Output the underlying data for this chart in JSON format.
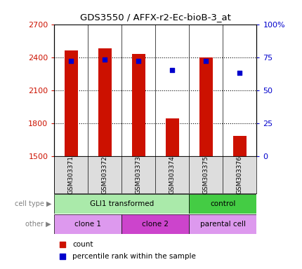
{
  "title": "GDS3550 / AFFX-r2-Ec-bioB-3_at",
  "samples": [
    "GSM303371",
    "GSM303372",
    "GSM303373",
    "GSM303374",
    "GSM303375",
    "GSM303376"
  ],
  "counts": [
    2460,
    2480,
    2430,
    1840,
    2400,
    1680
  ],
  "percentile_ranks": [
    72,
    73,
    72,
    65,
    72,
    63
  ],
  "ylim_left": [
    1500,
    2700
  ],
  "ylim_right": [
    0,
    100
  ],
  "yticks_left": [
    1500,
    1800,
    2100,
    2400,
    2700
  ],
  "yticks_right": [
    0,
    25,
    50,
    75,
    100
  ],
  "bar_color": "#cc1100",
  "dot_color": "#0000cc",
  "bar_bottom": 1500,
  "cell_type_labels": [
    {
      "text": "GLI1 transformed",
      "span": [
        0,
        4
      ],
      "color": "#aaeaaa"
    },
    {
      "text": "control",
      "span": [
        4,
        6
      ],
      "color": "#44cc44"
    }
  ],
  "other_labels": [
    {
      "text": "clone 1",
      "span": [
        0,
        2
      ],
      "color": "#dd99ee"
    },
    {
      "text": "clone 2",
      "span": [
        2,
        4
      ],
      "color": "#cc44cc"
    },
    {
      "text": "parental cell",
      "span": [
        4,
        6
      ],
      "color": "#dd99ee"
    }
  ],
  "legend_count_color": "#cc1100",
  "legend_dot_color": "#0000cc",
  "left_label_color": "#cc1100",
  "right_label_color": "#0000cc",
  "background_color": "#ffffff",
  "plot_bg_color": "#ffffff",
  "sample_box_color": "#dddddd",
  "grid_dotted_color": "#000000"
}
